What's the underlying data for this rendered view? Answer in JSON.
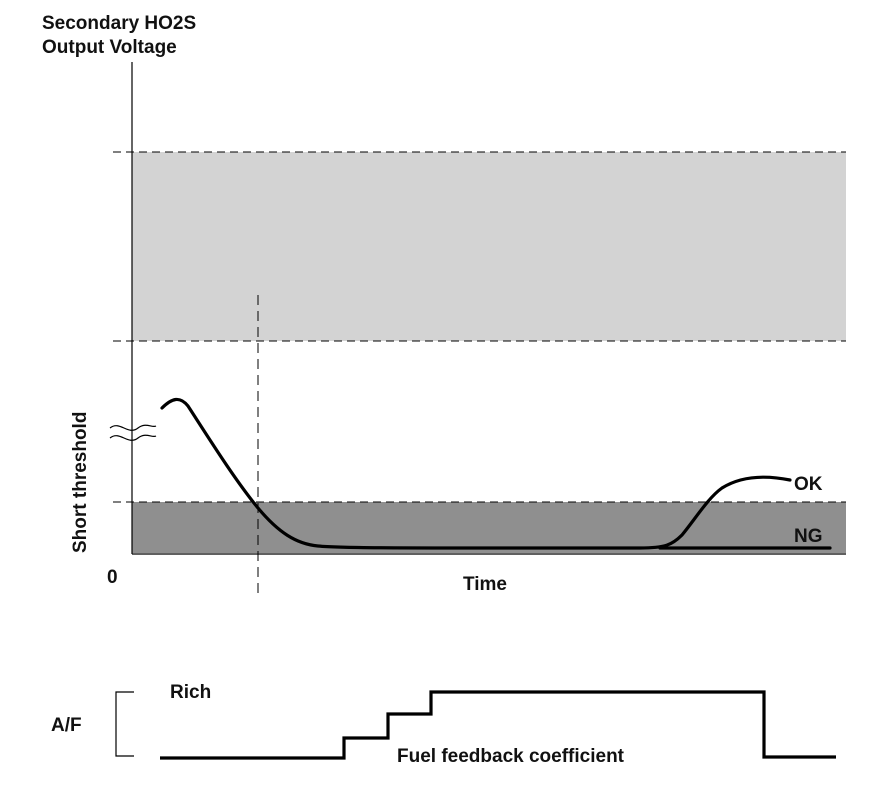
{
  "upper_chart": {
    "y_title_line1": "Secondary HO2S",
    "y_title_line2": "Output Voltage",
    "y_side_label": "Short threshold",
    "x_zero": "0",
    "x_label": "Time",
    "curve_ok_label": "OK",
    "curve_ng_label": "NG"
  },
  "lower_chart": {
    "y_label": "A/F",
    "rich_label": "Rich",
    "caption": "Fuel feedback coefficient"
  },
  "colors": {
    "upper_band": "#d3d3d3",
    "short_band": "#8f8f8f",
    "line": "#000000"
  }
}
